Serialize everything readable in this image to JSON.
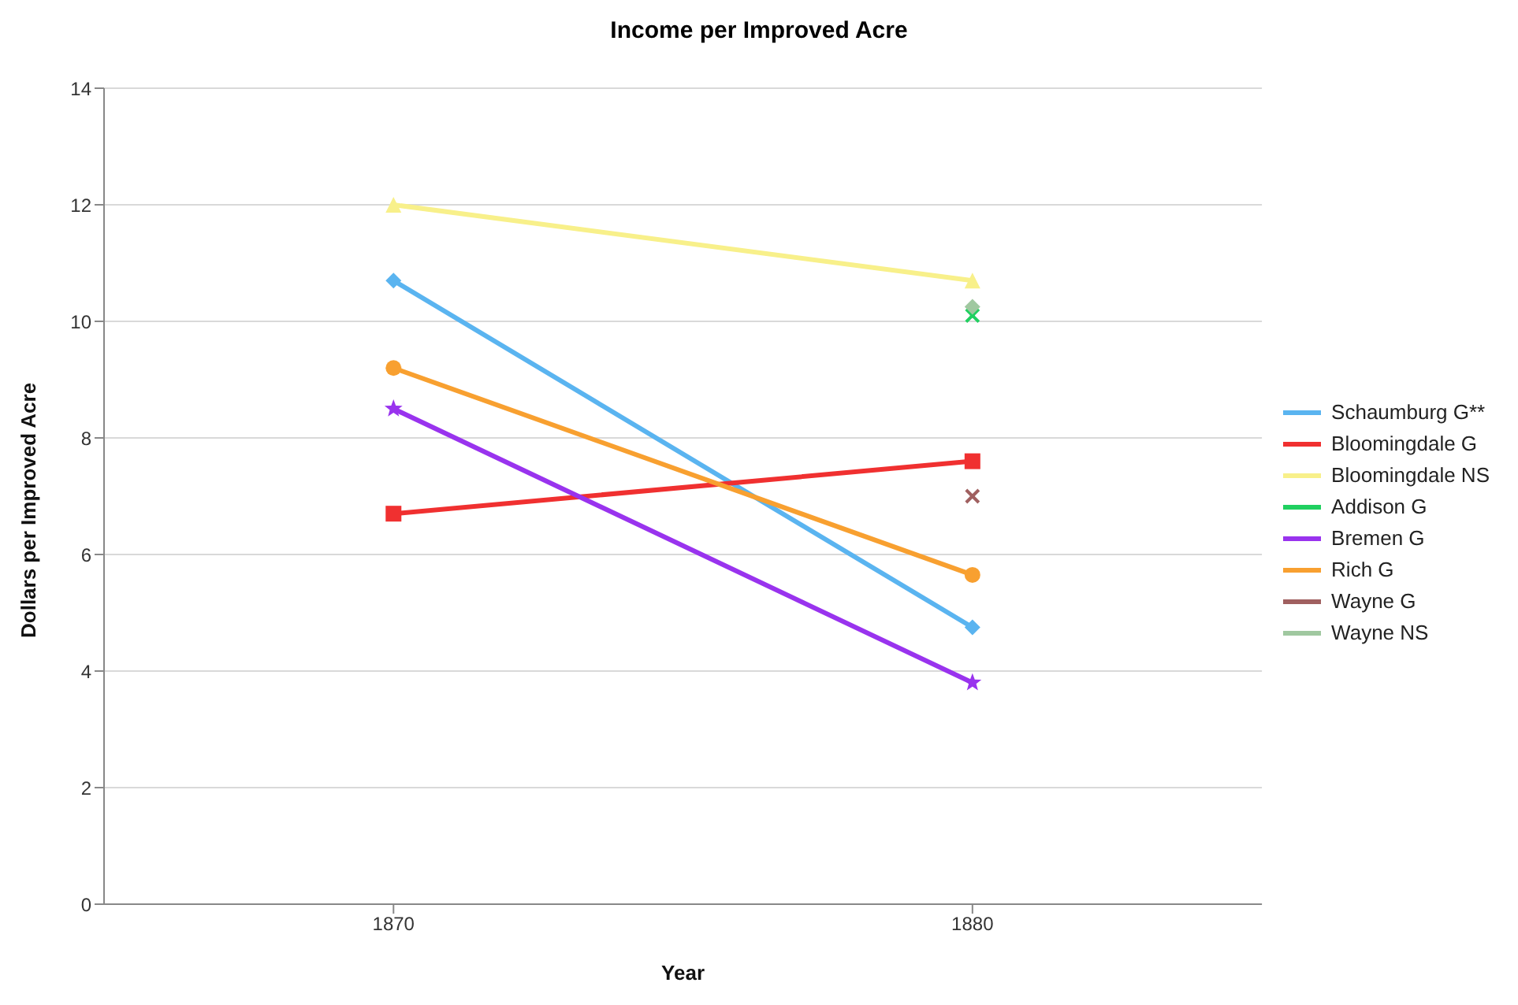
{
  "chart_data": {
    "type": "line",
    "title": "Income per Improved Acre",
    "xlabel": "Year",
    "ylabel": "Dollars per Improved Acre",
    "categories": [
      "1870",
      "1880"
    ],
    "ylim": [
      0,
      14
    ],
    "yticks": [
      0,
      2,
      4,
      6,
      8,
      10,
      12,
      14
    ],
    "grid": "y",
    "legend": "right",
    "series": [
      {
        "name": "Schaumburg G**",
        "color": "#5ab4f0",
        "marker": "diamond",
        "values": [
          10.7,
          4.75
        ]
      },
      {
        "name": "Bloomingdale G",
        "color": "#f03030",
        "marker": "square",
        "values": [
          6.7,
          7.6
        ]
      },
      {
        "name": "Bloomingdale NS",
        "color": "#f8f08a",
        "marker": "triangle",
        "values": [
          12.0,
          10.7
        ]
      },
      {
        "name": "Addison G",
        "color": "#20d060",
        "marker": "cross",
        "values": [
          null,
          10.1
        ]
      },
      {
        "name": "Bremen G",
        "color": "#9933ee",
        "marker": "star",
        "values": [
          8.5,
          3.8
        ]
      },
      {
        "name": "Rich G",
        "color": "#f8a030",
        "marker": "circle",
        "values": [
          9.2,
          5.65
        ]
      },
      {
        "name": "Wayne G",
        "color": "#a06060",
        "marker": "cross",
        "values": [
          null,
          7.0
        ]
      },
      {
        "name": "Wayne NS",
        "color": "#a0c8a0",
        "marker": "diamond",
        "values": [
          null,
          10.25
        ]
      }
    ]
  }
}
